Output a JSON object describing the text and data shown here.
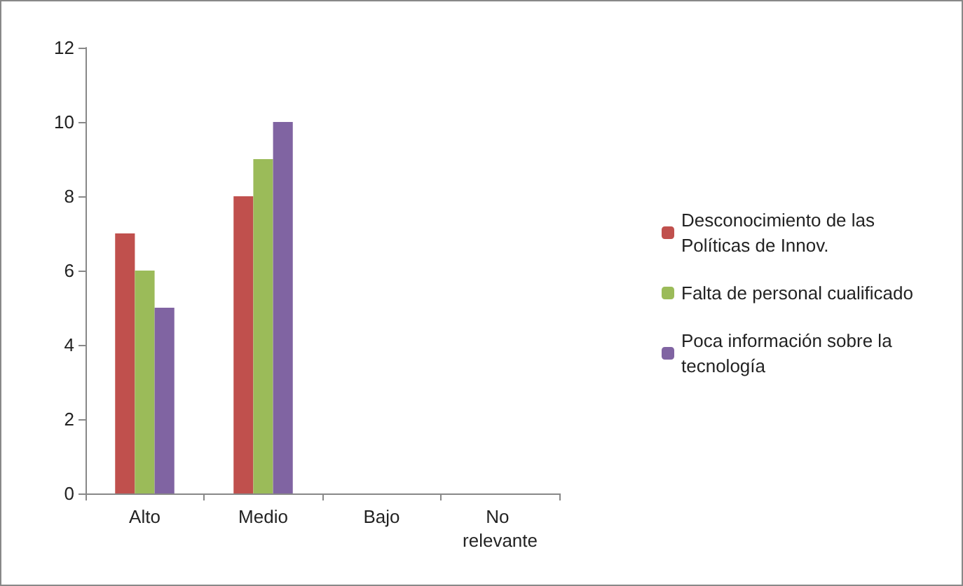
{
  "chart_data": {
    "type": "bar",
    "categories": [
      "Alto",
      "Medio",
      "Bajo",
      "No relevante"
    ],
    "series": [
      {
        "name": "Desconocimiento de las Políticas de Innov.",
        "color": "#c0504d",
        "values": [
          7,
          8,
          0,
          0
        ]
      },
      {
        "name": "Falta de personal cualificado",
        "color": "#9bbb59",
        "values": [
          6,
          9,
          0,
          0
        ]
      },
      {
        "name": "Poca información sobre la tecnología",
        "color": "#8064a2",
        "values": [
          5,
          10,
          0,
          0
        ]
      }
    ],
    "ylim": [
      0,
      12
    ],
    "yticks": [
      0,
      2,
      4,
      6,
      8,
      10,
      12
    ],
    "grid": false,
    "legend": "right"
  }
}
